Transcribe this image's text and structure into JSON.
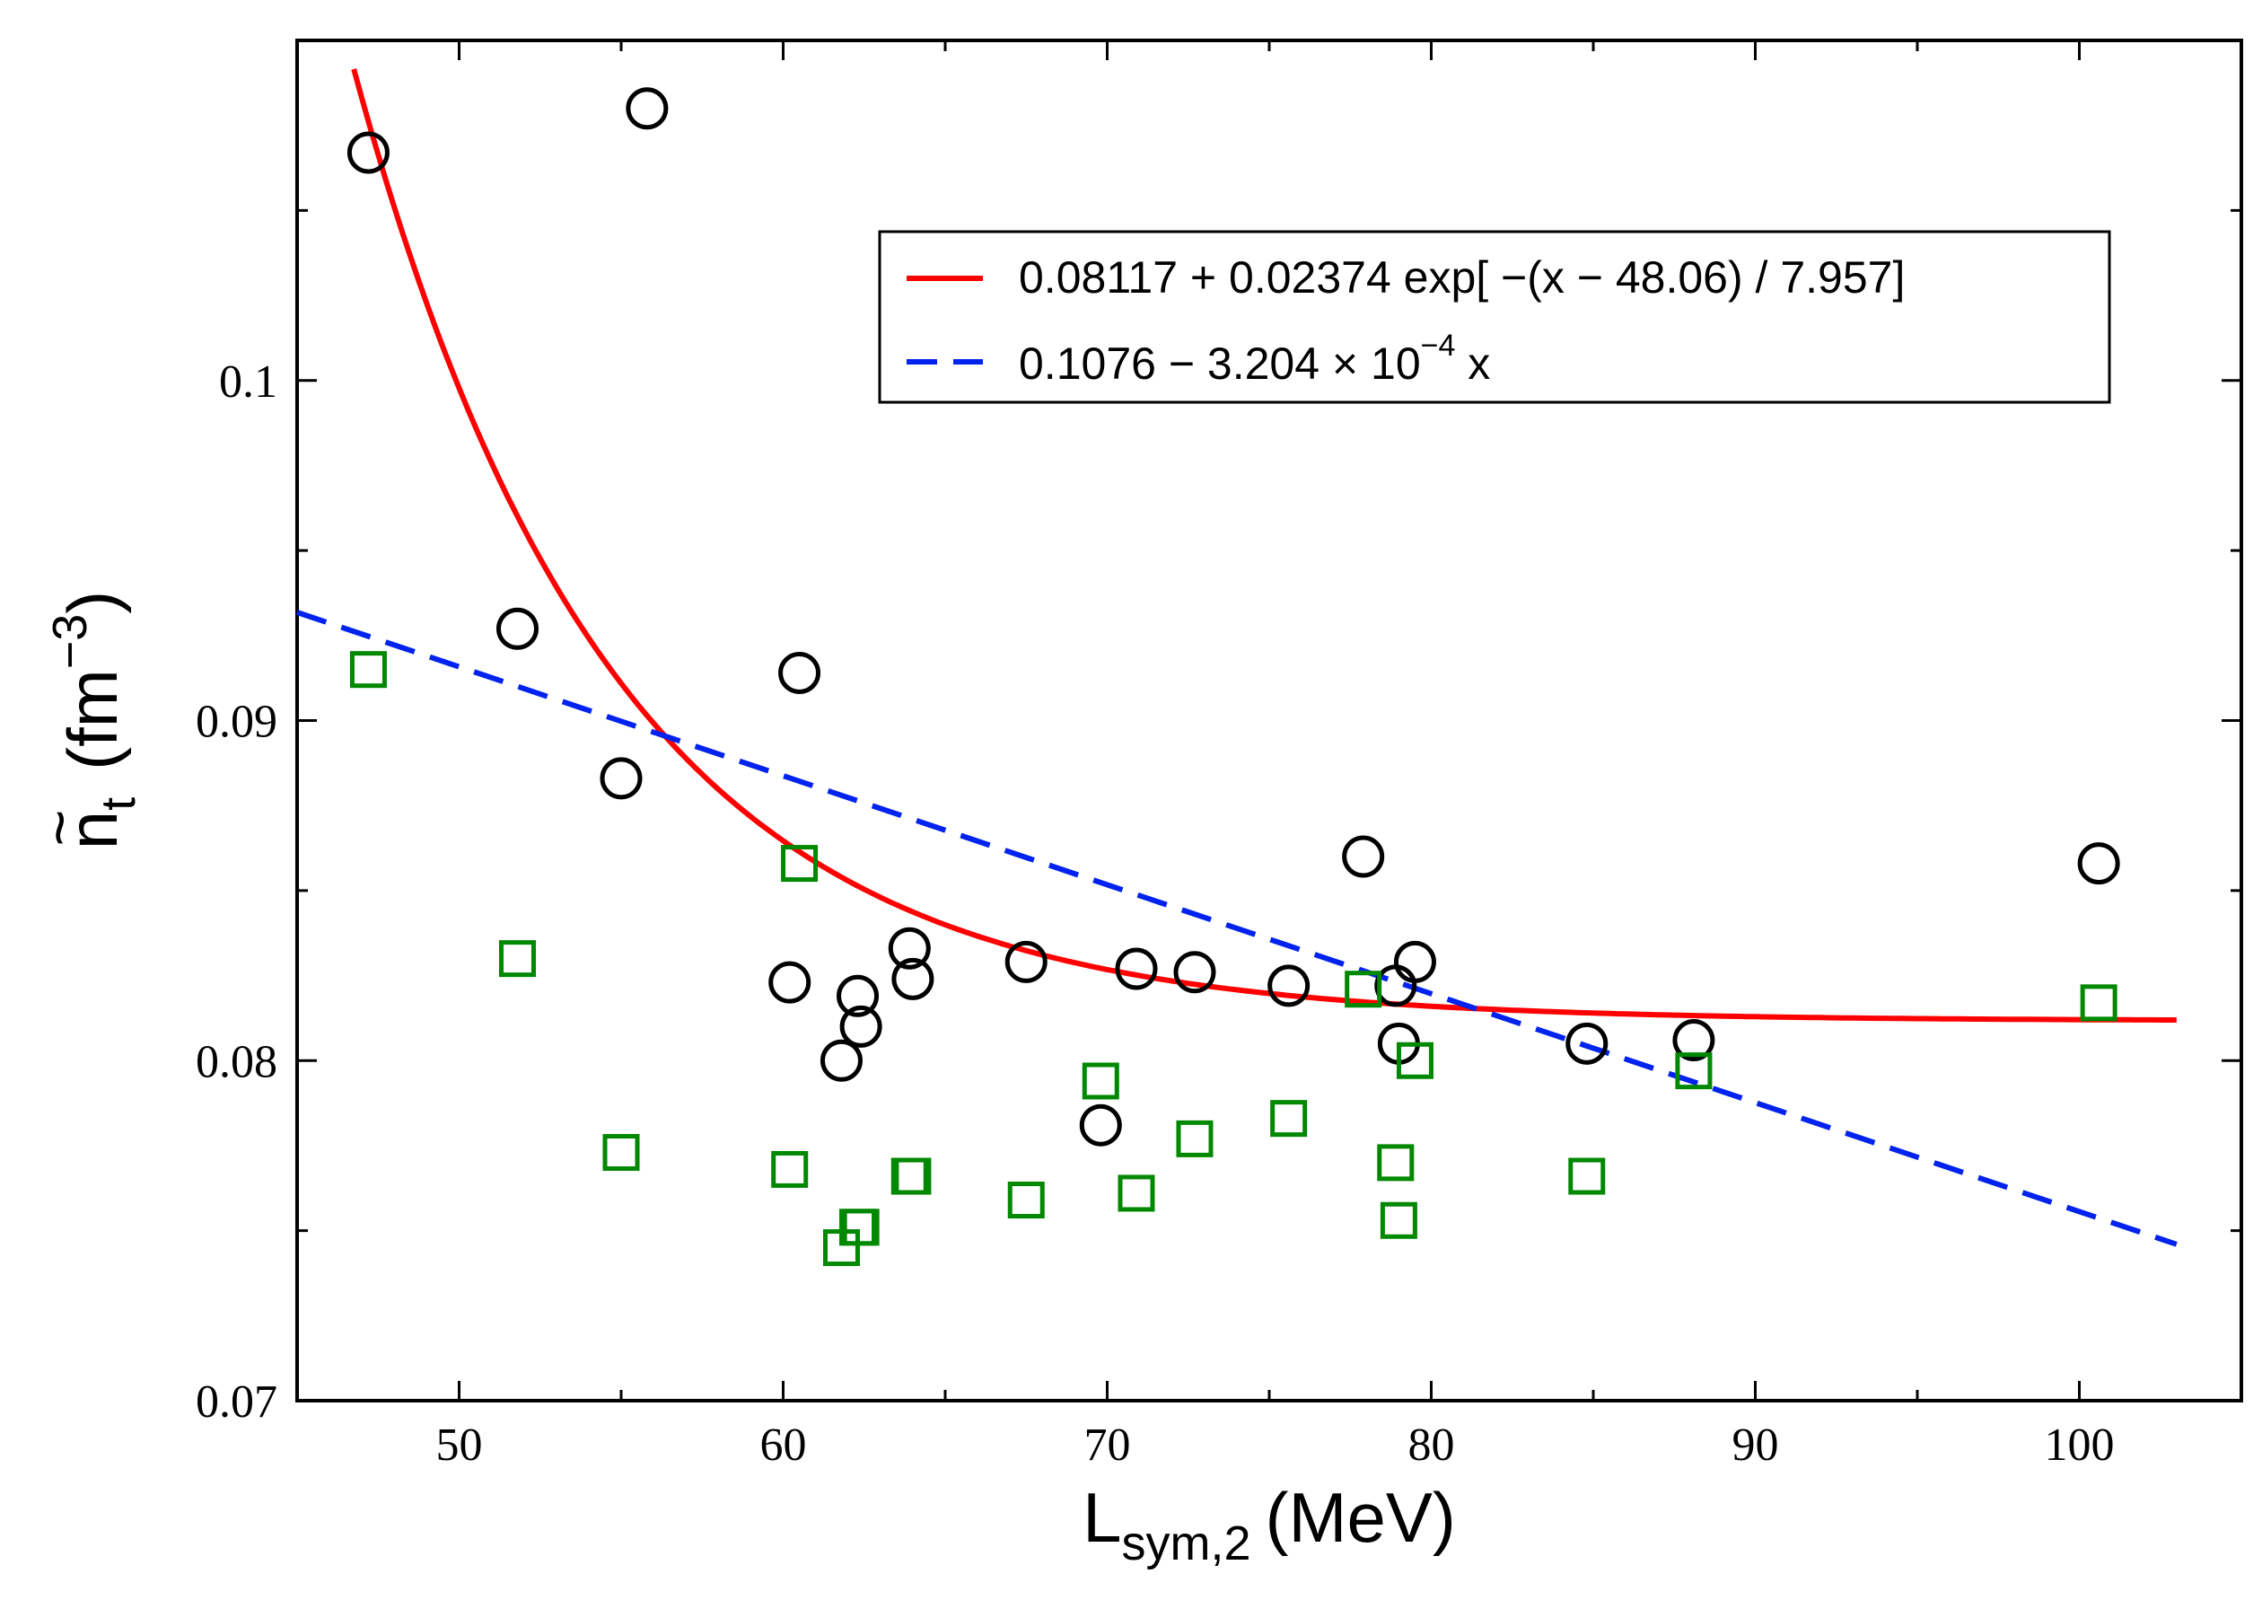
{
  "chart_data": {
    "type": "scatter",
    "xlabel": {
      "main": "L",
      "sub": "sym,2",
      "unit": "(MeV)"
    },
    "ylabel": {
      "accent": "~",
      "main": "n",
      "sub": "t",
      "unit_open": "(fm",
      "unit_sup": "−3",
      "unit_close": ")"
    },
    "xlim": [
      45,
      105
    ],
    "ylim": [
      0.07,
      0.11
    ],
    "x_ticks": [
      50,
      60,
      70,
      80,
      90,
      100
    ],
    "x_tick_labels": [
      "50",
      "60",
      "70",
      "80",
      "90",
      "100"
    ],
    "y_ticks": [
      0.07,
      0.08,
      0.09,
      0.1
    ],
    "y_tick_labels": [
      "0.07",
      "0.08",
      "0.09",
      "0.1"
    ],
    "grid": false,
    "legend_position": "top-right",
    "series": [
      {
        "marker": "circle",
        "color": "#000000",
        "points": [
          [
            47.2,
            0.1067
          ],
          [
            55.8,
            0.108
          ],
          [
            51.8,
            0.0927
          ],
          [
            60.5,
            0.0914
          ],
          [
            55.0,
            0.0883
          ],
          [
            60.2,
            0.0823
          ],
          [
            61.8,
            0.08
          ],
          [
            62.3,
            0.0819
          ],
          [
            62.4,
            0.081
          ],
          [
            63.9,
            0.0833
          ],
          [
            64.0,
            0.0824
          ],
          [
            67.5,
            0.0829
          ],
          [
            69.8,
            0.0781
          ],
          [
            70.9,
            0.0827
          ],
          [
            72.7,
            0.0826
          ],
          [
            75.6,
            0.0822
          ],
          [
            77.9,
            0.086
          ],
          [
            78.9,
            0.0822
          ],
          [
            79.0,
            0.0805
          ],
          [
            79.5,
            0.0829
          ],
          [
            84.8,
            0.0805
          ],
          [
            88.1,
            0.0806
          ],
          [
            100.6,
            0.0858
          ]
        ]
      },
      {
        "marker": "square",
        "color": "#008800",
        "points": [
          [
            47.2,
            0.0915
          ],
          [
            51.8,
            0.083
          ],
          [
            55.0,
            0.0773
          ],
          [
            60.2,
            0.0768
          ],
          [
            60.5,
            0.0858
          ],
          [
            61.8,
            0.0745
          ],
          [
            62.3,
            0.0751
          ],
          [
            62.4,
            0.0751
          ],
          [
            63.9,
            0.0766
          ],
          [
            64.0,
            0.0766
          ],
          [
            67.5,
            0.0759
          ],
          [
            69.8,
            0.0794
          ],
          [
            70.9,
            0.0761
          ],
          [
            72.7,
            0.0777
          ],
          [
            75.6,
            0.0783
          ],
          [
            77.9,
            0.0821
          ],
          [
            78.9,
            0.077
          ],
          [
            79.0,
            0.0753
          ],
          [
            79.5,
            0.08
          ],
          [
            84.8,
            0.0766
          ],
          [
            88.1,
            0.0797
          ],
          [
            100.6,
            0.0817
          ]
        ]
      }
    ],
    "fits": [
      {
        "style": "solid",
        "color": "#ff0000",
        "kind": "exponential",
        "a": 0.08117,
        "b": 0.02374,
        "x0": 48.06,
        "tau": 7.957,
        "x_range": [
          46.5,
          103
        ],
        "legend": "0.08117 + 0.02374 exp[ −(x − 48.06) / 7.957]"
      },
      {
        "style": "dashed",
        "color": "#0022ee",
        "kind": "linear",
        "intercept": 0.1076,
        "slope": -0.0003204,
        "x_range": [
          45,
          103
        ],
        "legend_parts": {
          "prefix": "0.1076 − 3.204 × 10",
          "exponent": "−4",
          "suffix": " x"
        }
      }
    ]
  }
}
